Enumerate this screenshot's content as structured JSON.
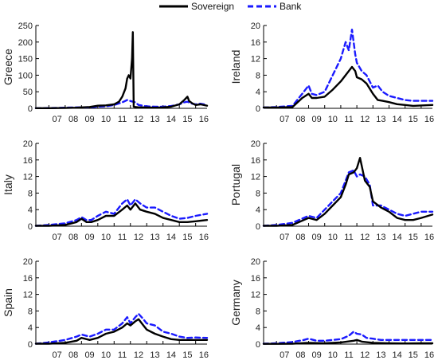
{
  "legend": {
    "items": [
      {
        "label": "Sovereign",
        "color": "#000000",
        "dash": "solid"
      },
      {
        "label": "Bank",
        "color": "#1a1aff",
        "dash": "dashed"
      }
    ]
  },
  "chart_data": [
    {
      "type": "line",
      "ylabel": "Greece",
      "ylim": [
        0,
        250
      ],
      "yticks": [
        0,
        50,
        100,
        150,
        200,
        250
      ],
      "xlim": [
        2006.2,
        2016.7
      ],
      "xticks": [
        2007,
        2008,
        2009,
        2010,
        2011,
        2012,
        2013,
        2014,
        2015,
        2016
      ],
      "xticklabels": [
        "07",
        "08",
        "09",
        "10",
        "11",
        "12",
        "13",
        "14",
        "15",
        "16"
      ],
      "series": [
        {
          "name": "Sovereign",
          "x": [
            2006.2,
            2007.0,
            2008.0,
            2008.7,
            2009.0,
            2009.5,
            2010.0,
            2010.5,
            2011.0,
            2011.3,
            2011.5,
            2011.7,
            2011.8,
            2011.9,
            2012.0,
            2012.1,
            2012.15,
            2012.2,
            2012.3,
            2012.5,
            2013.0,
            2013.5,
            2014.0,
            2014.5,
            2015.0,
            2015.3,
            2015.5,
            2015.6,
            2015.8,
            2016.0,
            2016.3,
            2016.7
          ],
          "y": [
            0.5,
            0.5,
            1,
            2,
            3,
            4,
            8,
            9,
            12,
            20,
            35,
            60,
            90,
            100,
            90,
            150,
            230,
            5,
            4,
            3,
            3,
            2,
            3,
            5,
            12,
            25,
            35,
            22,
            15,
            10,
            12,
            8
          ]
        },
        {
          "name": "Bank",
          "x": [
            2006.2,
            2007.0,
            2008.0,
            2008.7,
            2009.0,
            2009.5,
            2010.0,
            2010.5,
            2011.0,
            2011.5,
            2011.8,
            2012.0,
            2012.3,
            2012.5,
            2013.0,
            2013.5,
            2014.0,
            2014.5,
            2015.0,
            2015.3,
            2015.5,
            2015.8,
            2016.0,
            2016.3,
            2016.7
          ],
          "y": [
            0.5,
            1,
            2,
            3,
            3,
            3,
            5,
            6,
            10,
            18,
            25,
            22,
            18,
            10,
            6,
            5,
            5,
            7,
            12,
            18,
            20,
            14,
            12,
            14,
            10
          ]
        }
      ]
    },
    {
      "type": "line",
      "ylabel": "Ireland",
      "ylim": [
        0,
        20
      ],
      "yticks": [
        0,
        4,
        8,
        12,
        16,
        20
      ],
      "xlim": [
        2006.2,
        2016.7
      ],
      "xticks": [
        2007,
        2008,
        2009,
        2010,
        2011,
        2012,
        2013,
        2014,
        2015,
        2016
      ],
      "xticklabels": [
        "07",
        "08",
        "09",
        "10",
        "11",
        "12",
        "13",
        "14",
        "15",
        "16"
      ],
      "series": [
        {
          "name": "Sovereign",
          "x": [
            2006.2,
            2007.0,
            2008.0,
            2008.6,
            2009.0,
            2009.2,
            2009.5,
            2010.0,
            2010.5,
            2011.0,
            2011.3,
            2011.5,
            2011.7,
            2011.9,
            2012.0,
            2012.3,
            2012.6,
            2013.0,
            2013.3,
            2013.6,
            2014.0,
            2014.5,
            2015.0,
            2015.5,
            2016.0,
            2016.7
          ],
          "y": [
            0.2,
            0.2,
            0.3,
            2.5,
            3.5,
            2.5,
            2.5,
            2.8,
            4.5,
            6.5,
            8,
            9,
            10,
            9,
            7.5,
            7,
            6,
            3.5,
            2,
            1.8,
            1.5,
            1,
            0.8,
            0.6,
            0.7,
            0.8
          ]
        },
        {
          "name": "Bank",
          "x": [
            2006.2,
            2007.0,
            2008.0,
            2008.6,
            2009.0,
            2009.2,
            2009.5,
            2010.0,
            2010.5,
            2011.0,
            2011.3,
            2011.5,
            2011.7,
            2011.9,
            2012.0,
            2012.3,
            2012.6,
            2013.0,
            2013.3,
            2013.6,
            2014.0,
            2014.5,
            2015.0,
            2015.5,
            2016.0,
            2016.7
          ],
          "y": [
            0.2,
            0.3,
            0.6,
            3.5,
            5.5,
            3.5,
            3.2,
            4,
            8,
            12,
            16,
            14,
            19,
            13,
            11,
            9,
            8,
            5,
            5.5,
            4,
            3,
            2.5,
            2,
            1.8,
            1.8,
            1.8
          ]
        }
      ]
    },
    {
      "type": "line",
      "ylabel": "Italy",
      "ylim": [
        0,
        20
      ],
      "yticks": [
        0,
        4,
        8,
        12,
        16,
        20
      ],
      "xlim": [
        2006.2,
        2016.7
      ],
      "xticks": [
        2007,
        2008,
        2009,
        2010,
        2011,
        2012,
        2013,
        2014,
        2015,
        2016
      ],
      "xticklabels": [
        "07",
        "08",
        "09",
        "10",
        "11",
        "12",
        "13",
        "14",
        "15",
        "16"
      ],
      "series": [
        {
          "name": "Sovereign",
          "x": [
            2006.2,
            2007.0,
            2008.0,
            2008.7,
            2009.0,
            2009.3,
            2009.6,
            2010.0,
            2010.5,
            2011.0,
            2011.5,
            2011.8,
            2012.0,
            2012.3,
            2012.6,
            2013.0,
            2013.5,
            2014.0,
            2014.5,
            2015.0,
            2015.5,
            2016.0,
            2016.7
          ],
          "y": [
            0.1,
            0.1,
            0.3,
            1,
            1.8,
            1,
            1,
            1.5,
            2.5,
            2.5,
            4,
            5,
            4,
            5.5,
            4,
            3.5,
            3,
            2,
            1.5,
            1,
            1,
            1.2,
            1.5
          ]
        },
        {
          "name": "Bank",
          "x": [
            2006.2,
            2007.0,
            2008.0,
            2008.7,
            2009.0,
            2009.3,
            2009.6,
            2010.0,
            2010.5,
            2011.0,
            2011.5,
            2011.8,
            2012.0,
            2012.3,
            2012.6,
            2013.0,
            2013.5,
            2014.0,
            2014.5,
            2015.0,
            2015.5,
            2016.0,
            2016.7
          ],
          "y": [
            0.1,
            0.3,
            0.7,
            1.5,
            2.2,
            1.5,
            1.5,
            2.5,
            3.5,
            3,
            5.5,
            6.5,
            5,
            6.5,
            5.5,
            4.5,
            4.5,
            3.5,
            2.5,
            1.8,
            2,
            2.5,
            3
          ]
        }
      ]
    },
    {
      "type": "line",
      "ylabel": "Portugal",
      "ylim": [
        0,
        20
      ],
      "yticks": [
        0,
        4,
        8,
        12,
        16,
        20
      ],
      "xlim": [
        2006.2,
        2016.7
      ],
      "xticks": [
        2007,
        2008,
        2009,
        2010,
        2011,
        2012,
        2013,
        2014,
        2015,
        2016
      ],
      "xticklabels": [
        "07",
        "08",
        "09",
        "10",
        "11",
        "12",
        "13",
        "14",
        "15",
        "16"
      ],
      "series": [
        {
          "name": "Sovereign",
          "x": [
            2006.2,
            2007.0,
            2008.0,
            2008.7,
            2009.0,
            2009.5,
            2010.0,
            2010.5,
            2011.0,
            2011.3,
            2011.5,
            2011.8,
            2012.0,
            2012.2,
            2012.5,
            2012.8,
            2013.0,
            2013.5,
            2014.0,
            2014.5,
            2015.0,
            2015.5,
            2016.0,
            2016.7
          ],
          "y": [
            0.1,
            0.1,
            0.3,
            1.5,
            2,
            1.5,
            3,
            5,
            7,
            10,
            12.5,
            13,
            14,
            16.5,
            11,
            9.5,
            6,
            4.5,
            3.5,
            2,
            1.5,
            1.5,
            2,
            2.8
          ]
        },
        {
          "name": "Bank",
          "x": [
            2006.2,
            2007.0,
            2008.0,
            2008.7,
            2009.0,
            2009.5,
            2010.0,
            2010.5,
            2011.0,
            2011.3,
            2011.5,
            2011.8,
            2012.0,
            2012.2,
            2012.5,
            2012.8,
            2013.0,
            2013.5,
            2014.0,
            2014.5,
            2015.0,
            2015.5,
            2016.0,
            2016.7
          ],
          "y": [
            0.1,
            0.3,
            0.8,
            2,
            2.5,
            2,
            4,
            6,
            8,
            11,
            13,
            13.5,
            12,
            12.5,
            12,
            10,
            5,
            5,
            4,
            3,
            2.5,
            3,
            3.5,
            3.5
          ]
        }
      ]
    },
    {
      "type": "line",
      "ylabel": "Spain",
      "ylim": [
        0,
        20
      ],
      "yticks": [
        0,
        4,
        8,
        12,
        16,
        20
      ],
      "xlim": [
        2006.2,
        2016.7
      ],
      "xticks": [
        2007,
        2008,
        2009,
        2010,
        2011,
        2012,
        2013,
        2014,
        2015,
        2016
      ],
      "xticklabels": [
        "07",
        "08",
        "09",
        "10",
        "11",
        "12",
        "13",
        "14",
        "15",
        "16"
      ],
      "series": [
        {
          "name": "Sovereign",
          "x": [
            2006.2,
            2007.0,
            2008.0,
            2008.7,
            2009.0,
            2009.5,
            2010.0,
            2010.5,
            2011.0,
            2011.5,
            2011.8,
            2012.0,
            2012.3,
            2012.5,
            2012.8,
            2013.0,
            2013.5,
            2014.0,
            2014.5,
            2015.0,
            2015.5,
            2016.0,
            2016.7
          ],
          "y": [
            0.1,
            0.1,
            0.3,
            0.8,
            1.5,
            1,
            1.5,
            2.5,
            3,
            4,
            5,
            4.5,
            5.5,
            6,
            4.5,
            3.5,
            2.5,
            1.8,
            1.2,
            1,
            1,
            1,
            1
          ]
        },
        {
          "name": "Bank",
          "x": [
            2006.2,
            2007.0,
            2008.0,
            2008.7,
            2009.0,
            2009.5,
            2010.0,
            2010.5,
            2011.0,
            2011.5,
            2011.8,
            2012.0,
            2012.3,
            2012.5,
            2012.8,
            2013.0,
            2013.5,
            2014.0,
            2014.5,
            2015.0,
            2015.5,
            2016.0,
            2016.7
          ],
          "y": [
            0.1,
            0.4,
            1,
            1.8,
            2.3,
            1.8,
            2.5,
            3.5,
            3.5,
            5,
            6.5,
            5,
            6.5,
            7.3,
            6,
            5,
            4.5,
            3,
            2.5,
            1.8,
            1.5,
            1.6,
            1.5
          ]
        }
      ]
    },
    {
      "type": "line",
      "ylabel": "Germany",
      "ylim": [
        0,
        20
      ],
      "yticks": [
        0,
        4,
        8,
        12,
        16,
        20
      ],
      "xlim": [
        2006.2,
        2016.7
      ],
      "xticks": [
        2007,
        2008,
        2009,
        2010,
        2011,
        2012,
        2013,
        2014,
        2015,
        2016
      ],
      "xticklabels": [
        "07",
        "08",
        "09",
        "10",
        "11",
        "12",
        "13",
        "14",
        "15",
        "16"
      ],
      "series": [
        {
          "name": "Sovereign",
          "x": [
            2006.2,
            2007.0,
            2008.0,
            2009.0,
            2010.0,
            2011.0,
            2011.8,
            2012.0,
            2012.3,
            2013.0,
            2014.0,
            2015.0,
            2016.0,
            2016.7
          ],
          "y": [
            0.05,
            0.05,
            0.1,
            0.3,
            0.2,
            0.4,
            0.8,
            1,
            0.6,
            0.3,
            0.2,
            0.15,
            0.2,
            0.2
          ]
        },
        {
          "name": "Bank",
          "x": [
            2006.2,
            2007.0,
            2008.0,
            2008.7,
            2009.0,
            2009.5,
            2010.0,
            2010.5,
            2011.0,
            2011.5,
            2011.8,
            2012.0,
            2012.3,
            2012.6,
            2013.0,
            2013.5,
            2014.0,
            2015.0,
            2016.0,
            2016.7
          ],
          "y": [
            0.1,
            0.2,
            0.5,
            1,
            1.3,
            0.8,
            0.8,
            1,
            1.2,
            2,
            3,
            2.5,
            2.3,
            1.5,
            1.3,
            1,
            1,
            1,
            1,
            1
          ]
        }
      ]
    }
  ]
}
